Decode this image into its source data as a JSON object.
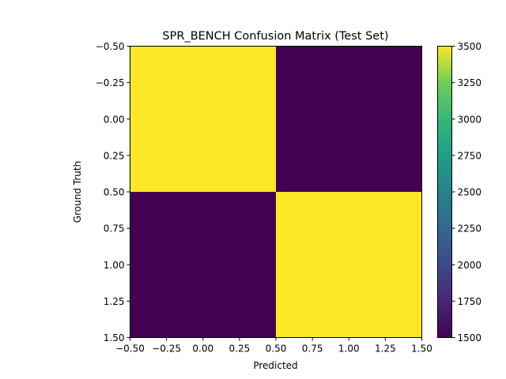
{
  "chart_data": {
    "type": "heatmap",
    "title": "SPR_BENCH Confusion Matrix (Test Set)",
    "xlabel": "Predicted",
    "ylabel": "Ground Truth",
    "xlim": [
      -0.5,
      1.5
    ],
    "ylim": [
      -0.5,
      1.5
    ],
    "x_ticks": [
      "−0.50",
      "−0.25",
      "0.00",
      "0.25",
      "0.50",
      "0.75",
      "1.00",
      "1.25",
      "1.50"
    ],
    "y_ticks": [
      "−0.50",
      "−0.25",
      "0.00",
      "0.25",
      "0.50",
      "0.75",
      "1.00",
      "1.25",
      "1.50"
    ],
    "matrix": [
      [
        3500,
        1500
      ],
      [
        1500,
        3500
      ]
    ],
    "colorbar": {
      "min": 1500,
      "max": 3500,
      "ticks": [
        "1500",
        "1750",
        "2000",
        "2250",
        "2500",
        "2750",
        "3000",
        "3250",
        "3500"
      ],
      "colormap": "viridis"
    },
    "grid": false
  }
}
